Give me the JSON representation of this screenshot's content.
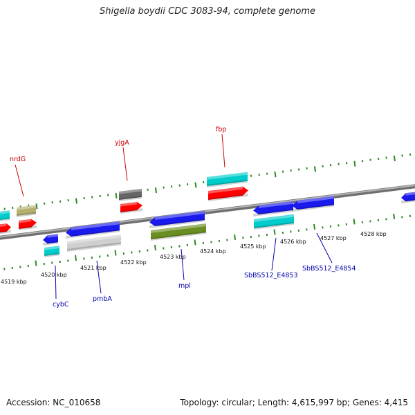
{
  "title": "Shigella boydii CDC 3083-94, complete genome",
  "footer": {
    "accession": "Accession: NC_010658",
    "stats": "Topology: circular; Length: 4,615,997 bp; Genes: 4,415"
  },
  "colors": {
    "backbone": "#8c8c8c",
    "forward_tick": "#2a8a1f",
    "reverse_tick": "#2a8a1f",
    "forward_label": "#cc0000",
    "reverse_label": "#0000aa",
    "red": "#ff0000",
    "cyan": "#00cccc",
    "khaki": "#b5b070",
    "gray_dark": "#666666",
    "blue": "#1a1aee",
    "light_gray": "#cfcfcf",
    "olive": "#6b8e23"
  },
  "tick_labels": [
    "4519 kbp",
    "4520 kbp",
    "4521 kbp",
    "4522 kbp",
    "4523 kbp",
    "4524 kbp",
    "4525 kbp",
    "4526 kbp",
    "4527 kbp",
    "4528 kbp"
  ],
  "forward_labels": [
    "nrdG",
    "yjgA",
    "fbp"
  ],
  "reverse_labels": [
    "cybC",
    "pmbA",
    "mpl",
    "SbBS512_E4853",
    "SbBS512_E4854"
  ]
}
